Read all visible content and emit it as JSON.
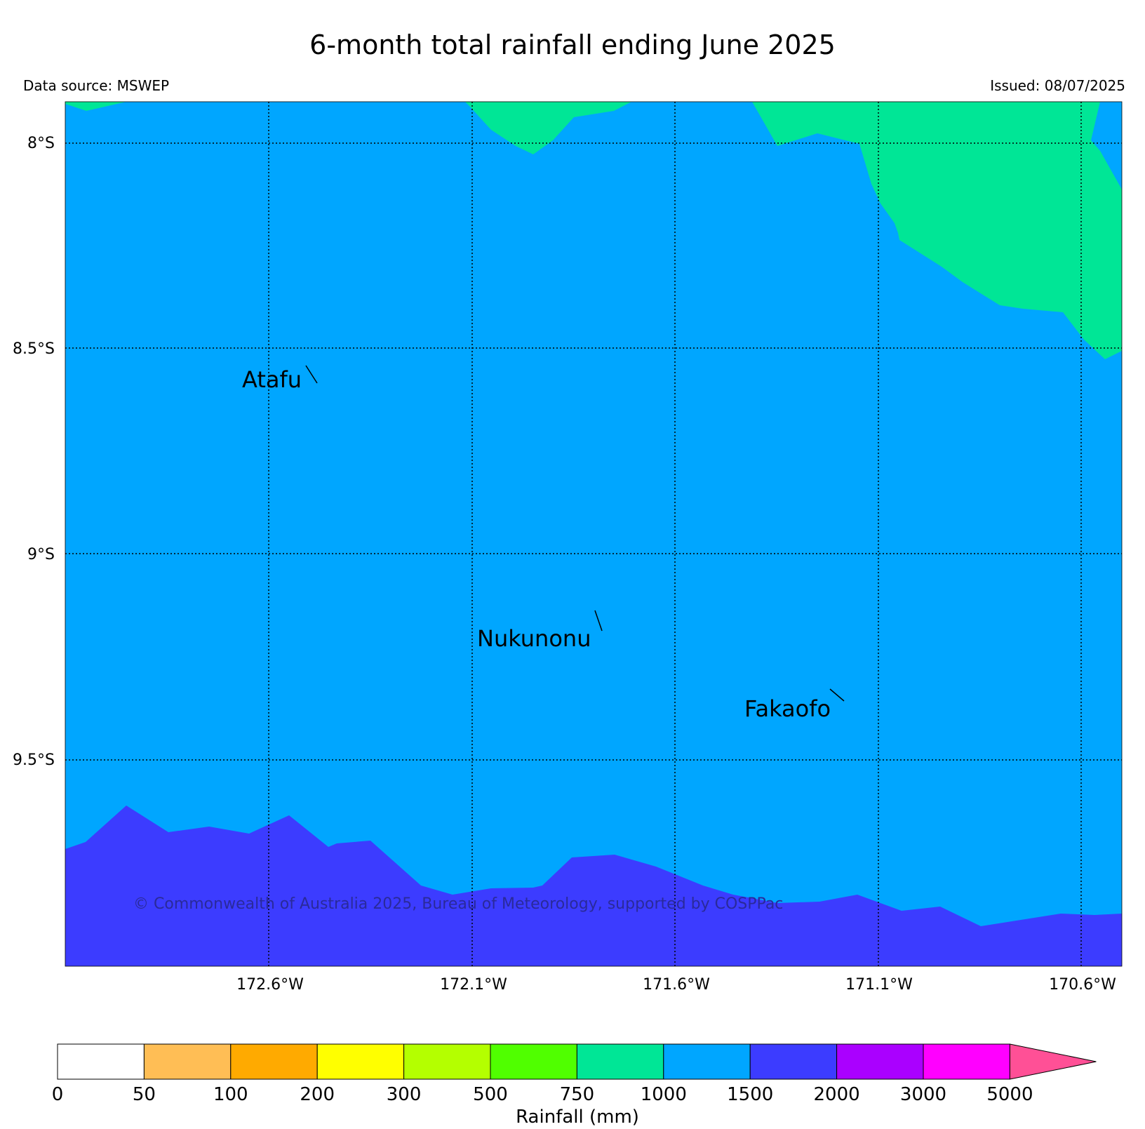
{
  "title": "6-month total rainfall ending June 2025",
  "data_source": "Data source: MSWEP",
  "issued": "Issued: 08/07/2025",
  "copyright": "© Commonwealth of Australia 2025, Bureau of Meteorology, supported by COSPPac",
  "latitude_labels": [
    "8°S",
    "8.5°S",
    "9°S",
    "9.5°S"
  ],
  "longitude_labels": [
    "172.6°W",
    "172.1°W",
    "171.6°W",
    "171.1°W",
    "170.6°W"
  ],
  "places": [
    {
      "name": "Atafu"
    },
    {
      "name": "Nukunonu"
    },
    {
      "name": "Fakaofo"
    }
  ],
  "colorbar": {
    "label": "Rainfall (mm)",
    "ticks": [
      "0",
      "50",
      "100",
      "200",
      "300",
      "500",
      "750",
      "1000",
      "1500",
      "2000",
      "3000",
      "5000"
    ],
    "colors": [
      "#ffffff",
      "#ffbe55",
      "#ffaa00",
      "#ffff00",
      "#b4ff00",
      "#50ff00",
      "#00e696",
      "#00a6ff",
      "#3c3cff",
      "#aa00ff",
      "#ff00ff"
    ],
    "extend_color": "#ff5096"
  },
  "legend_fill_colors": {
    "750-1000": "#00e696",
    "1000-1500": "#00a6ff",
    "1500-2000": "#3c3cff"
  }
}
